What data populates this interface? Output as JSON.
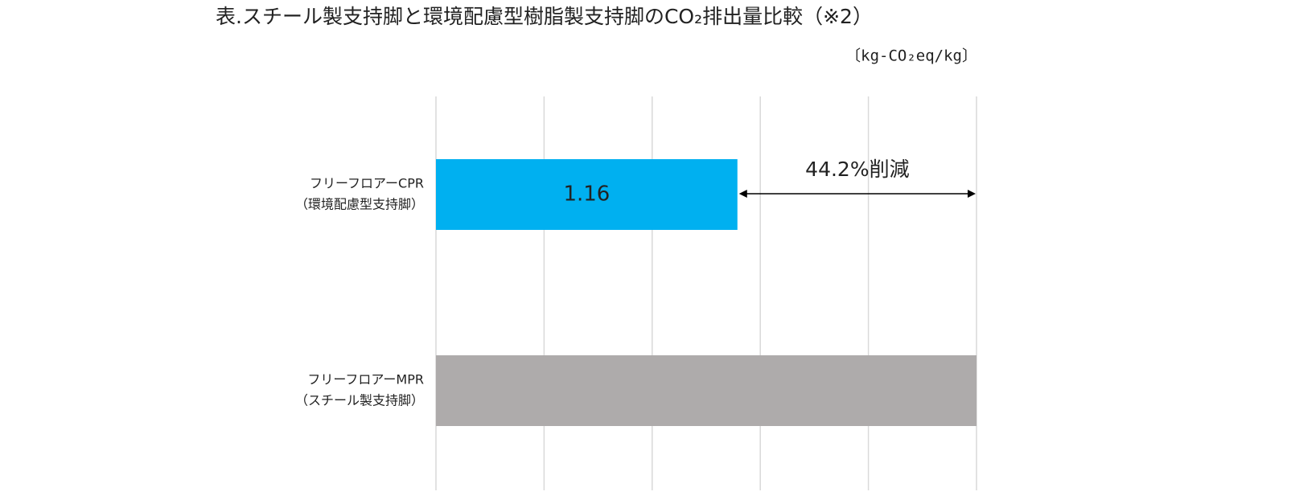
{
  "chart_data": {
    "type": "barh",
    "title": "表.スチール製支持脚と環境配慮型樹脂製支持脚のCO₂排出量比較（※2）",
    "unit": "〔kg-CO₂eq/kg〕",
    "categories": [
      [
        "フリーフロアーCPR",
        "（環境配慮型支持脚）"
      ],
      [
        "フリーフロアーMPR",
        "（スチール製支持脚）"
      ]
    ],
    "values": [
      1.16,
      2.08
    ],
    "value_labels": [
      "1.16",
      null
    ],
    "colors": [
      "#00b0f0",
      "#aeabab"
    ],
    "xlim": [
      0,
      2.08
    ],
    "grid": true,
    "annotation": "44.2%削減"
  }
}
